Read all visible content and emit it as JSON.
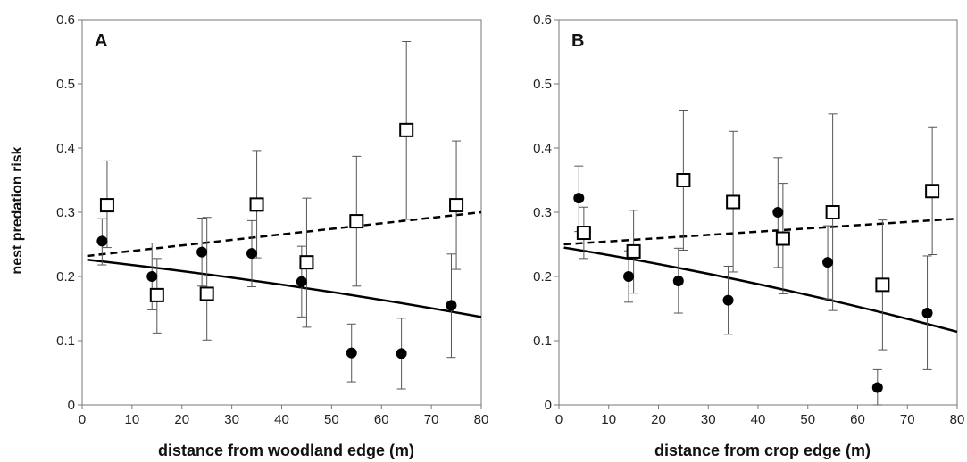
{
  "y_axis_label": "nest predation risk",
  "chart_data": [
    {
      "type": "scatter",
      "panel_letter": "A",
      "xlabel": "distance from woodland edge (m)",
      "ylabel": "nest predation risk",
      "xlim": [
        0,
        80
      ],
      "ylim": [
        0,
        0.6
      ],
      "x_ticks": [
        "0",
        "10",
        "20",
        "30",
        "40",
        "50",
        "60",
        "70",
        "80"
      ],
      "y_ticks": [
        "0",
        "0.1",
        "0.2",
        "0.3",
        "0.4",
        "0.5",
        "0.6"
      ],
      "grid": false,
      "series": [
        {
          "marker": "open-square",
          "points": [
            {
              "x": 5,
              "y": 0.311,
              "lo": 0.245,
              "hi": 0.38
            },
            {
              "x": 15,
              "y": 0.171,
              "lo": 0.112,
              "hi": 0.228
            },
            {
              "x": 25,
              "y": 0.173,
              "lo": 0.101,
              "hi": 0.292
            },
            {
              "x": 35,
              "y": 0.312,
              "lo": 0.229,
              "hi": 0.396
            },
            {
              "x": 45,
              "y": 0.222,
              "lo": 0.121,
              "hi": 0.322
            },
            {
              "x": 55,
              "y": 0.286,
              "lo": 0.185,
              "hi": 0.387
            },
            {
              "x": 65,
              "y": 0.428,
              "lo": 0.289,
              "hi": 0.566
            },
            {
              "x": 75,
              "y": 0.311,
              "lo": 0.211,
              "hi": 0.411
            }
          ],
          "trend": {
            "style": "dashed",
            "y_start": 0.232,
            "y_end": 0.3
          }
        },
        {
          "marker": "filled-circle",
          "points": [
            {
              "x": 4,
              "y": 0.255,
              "lo": 0.218,
              "hi": 0.29
            },
            {
              "x": 14,
              "y": 0.2,
              "lo": 0.148,
              "hi": 0.252
            },
            {
              "x": 24,
              "y": 0.238,
              "lo": 0.185,
              "hi": 0.291
            },
            {
              "x": 34,
              "y": 0.236,
              "lo": 0.184,
              "hi": 0.287
            },
            {
              "x": 44,
              "y": 0.192,
              "lo": 0.137,
              "hi": 0.247
            },
            {
              "x": 54,
              "y": 0.081,
              "lo": 0.036,
              "hi": 0.126
            },
            {
              "x": 64,
              "y": 0.08,
              "lo": 0.025,
              "hi": 0.135
            },
            {
              "x": 74,
              "y": 0.155,
              "lo": 0.074,
              "hi": 0.235
            }
          ],
          "trend": {
            "style": "solid",
            "y_start": 0.226,
            "y_end": 0.137
          }
        }
      ]
    },
    {
      "type": "scatter",
      "panel_letter": "B",
      "xlabel": "distance from crop edge (m)",
      "ylabel": "nest predation risk",
      "xlim": [
        0,
        80
      ],
      "ylim": [
        0,
        0.6
      ],
      "x_ticks": [
        "0",
        "10",
        "20",
        "30",
        "40",
        "50",
        "60",
        "70",
        "80"
      ],
      "y_ticks": [
        "0",
        "0.1",
        "0.2",
        "0.3",
        "0.4",
        "0.5",
        "0.6"
      ],
      "grid": false,
      "series": [
        {
          "marker": "open-square",
          "points": [
            {
              "x": 5,
              "y": 0.268,
              "lo": 0.228,
              "hi": 0.308
            },
            {
              "x": 15,
              "y": 0.239,
              "lo": 0.174,
              "hi": 0.303
            },
            {
              "x": 25,
              "y": 0.35,
              "lo": 0.241,
              "hi": 0.459
            },
            {
              "x": 35,
              "y": 0.316,
              "lo": 0.207,
              "hi": 0.426
            },
            {
              "x": 45,
              "y": 0.259,
              "lo": 0.173,
              "hi": 0.345
            },
            {
              "x": 55,
              "y": 0.3,
              "lo": 0.147,
              "hi": 0.453
            },
            {
              "x": 65,
              "y": 0.187,
              "lo": 0.086,
              "hi": 0.288
            },
            {
              "x": 75,
              "y": 0.333,
              "lo": 0.234,
              "hi": 0.433
            }
          ],
          "trend": {
            "style": "dashed",
            "y_start": 0.25,
            "y_end": 0.29
          }
        },
        {
          "marker": "filled-circle",
          "points": [
            {
              "x": 4,
              "y": 0.322,
              "lo": 0.27,
              "hi": 0.372
            },
            {
              "x": 14,
              "y": 0.2,
              "lo": 0.16,
              "hi": 0.24
            },
            {
              "x": 24,
              "y": 0.193,
              "lo": 0.143,
              "hi": 0.244
            },
            {
              "x": 34,
              "y": 0.163,
              "lo": 0.11,
              "hi": 0.216
            },
            {
              "x": 44,
              "y": 0.3,
              "lo": 0.214,
              "hi": 0.385
            },
            {
              "x": 54,
              "y": 0.222,
              "lo": 0.165,
              "hi": 0.279
            },
            {
              "x": 64,
              "y": 0.027,
              "lo": 0.0,
              "hi": 0.055
            },
            {
              "x": 74,
              "y": 0.143,
              "lo": 0.055,
              "hi": 0.232
            }
          ],
          "trend": {
            "style": "solid",
            "y_start": 0.245,
            "y_end": 0.114
          }
        }
      ]
    }
  ]
}
